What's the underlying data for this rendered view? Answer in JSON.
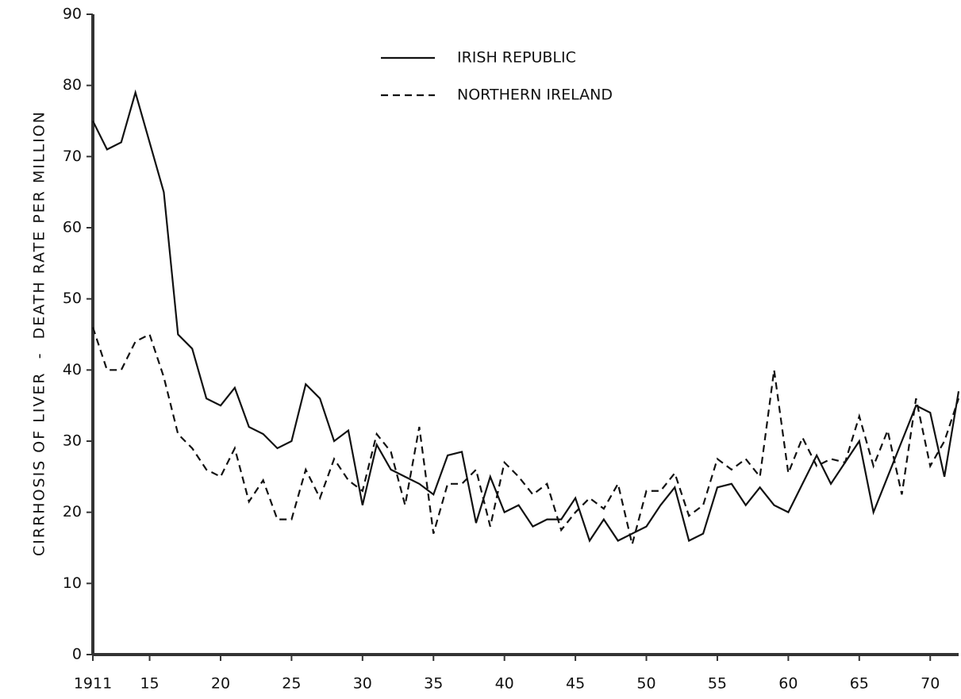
{
  "chart_data": {
    "type": "line",
    "y_label": "CIRRHOSIS OF LIVER  -  DEATH RATE PER MILLION",
    "x": [
      1911,
      1912,
      1913,
      1914,
      1915,
      1916,
      1917,
      1918,
      1919,
      1920,
      1921,
      1922,
      1923,
      1924,
      1925,
      1926,
      1927,
      1928,
      1929,
      1930,
      1931,
      1932,
      1933,
      1934,
      1935,
      1936,
      1937,
      1938,
      1939,
      1940,
      1941,
      1942,
      1943,
      1944,
      1945,
      1946,
      1947,
      1948,
      1949,
      1950,
      1951,
      1952,
      1953,
      1954,
      1955,
      1956,
      1957,
      1958,
      1959,
      1960,
      1961,
      1962,
      1963,
      1964,
      1965,
      1966,
      1967,
      1968,
      1969,
      1970,
      1971,
      1972
    ],
    "series": [
      {
        "name": "IRISH REPUBLIC",
        "color": "#111111",
        "dash": "solid",
        "values": [
          75,
          71,
          72,
          79,
          72,
          65,
          45,
          43,
          36,
          35,
          37.5,
          32,
          31,
          29,
          30,
          38,
          36,
          30,
          31.5,
          21,
          29.5,
          26,
          25,
          24,
          22.5,
          28,
          28.5,
          18.5,
          25,
          20,
          21,
          18,
          19,
          19,
          22,
          16,
          19,
          16,
          17,
          18,
          21,
          23.5,
          16,
          17,
          23.5,
          24,
          21,
          23.5,
          21,
          20,
          24,
          28,
          24,
          27,
          30,
          20,
          25,
          30,
          35,
          34,
          25,
          37
        ]
      },
      {
        "name": "NORTHERN IRELAND",
        "color": "#111111",
        "dash": "dashed",
        "values": [
          46,
          40,
          40,
          44,
          45,
          39,
          31,
          29,
          26,
          25,
          29,
          21.5,
          24.5,
          19,
          19,
          26,
          22,
          27.5,
          24.5,
          23,
          31,
          28.5,
          21,
          32,
          17,
          24,
          24,
          26,
          18,
          27,
          25,
          22.5,
          24,
          17.5,
          20,
          22,
          20.5,
          24,
          15.5,
          23,
          23,
          25.5,
          19.5,
          21,
          27.5,
          26,
          27.5,
          25,
          40,
          25.5,
          30.5,
          26.5,
          27.5,
          27,
          33.5,
          26.5,
          31.5,
          22.5,
          36,
          26.5,
          30,
          36
        ]
      }
    ],
    "xlim": [
      1911,
      1972
    ],
    "xticks": [
      1911,
      {
        "value": 1915,
        "label": "15"
      },
      {
        "value": 1920,
        "label": "20"
      },
      {
        "value": 1925,
        "label": "25"
      },
      {
        "value": 1930,
        "label": "30"
      },
      {
        "value": 1935,
        "label": "35"
      },
      {
        "value": 1940,
        "label": "40"
      },
      {
        "value": 1945,
        "label": "45"
      },
      {
        "value": 1950,
        "label": "50"
      },
      {
        "value": 1955,
        "label": "55"
      },
      {
        "value": 1960,
        "label": "60"
      },
      {
        "value": 1965,
        "label": "65"
      },
      {
        "value": 1970,
        "label": "70"
      }
    ],
    "ylim": [
      0,
      90
    ],
    "yticks": [
      0,
      10,
      20,
      30,
      40,
      50,
      60,
      70,
      80,
      90
    ],
    "grid": false
  }
}
